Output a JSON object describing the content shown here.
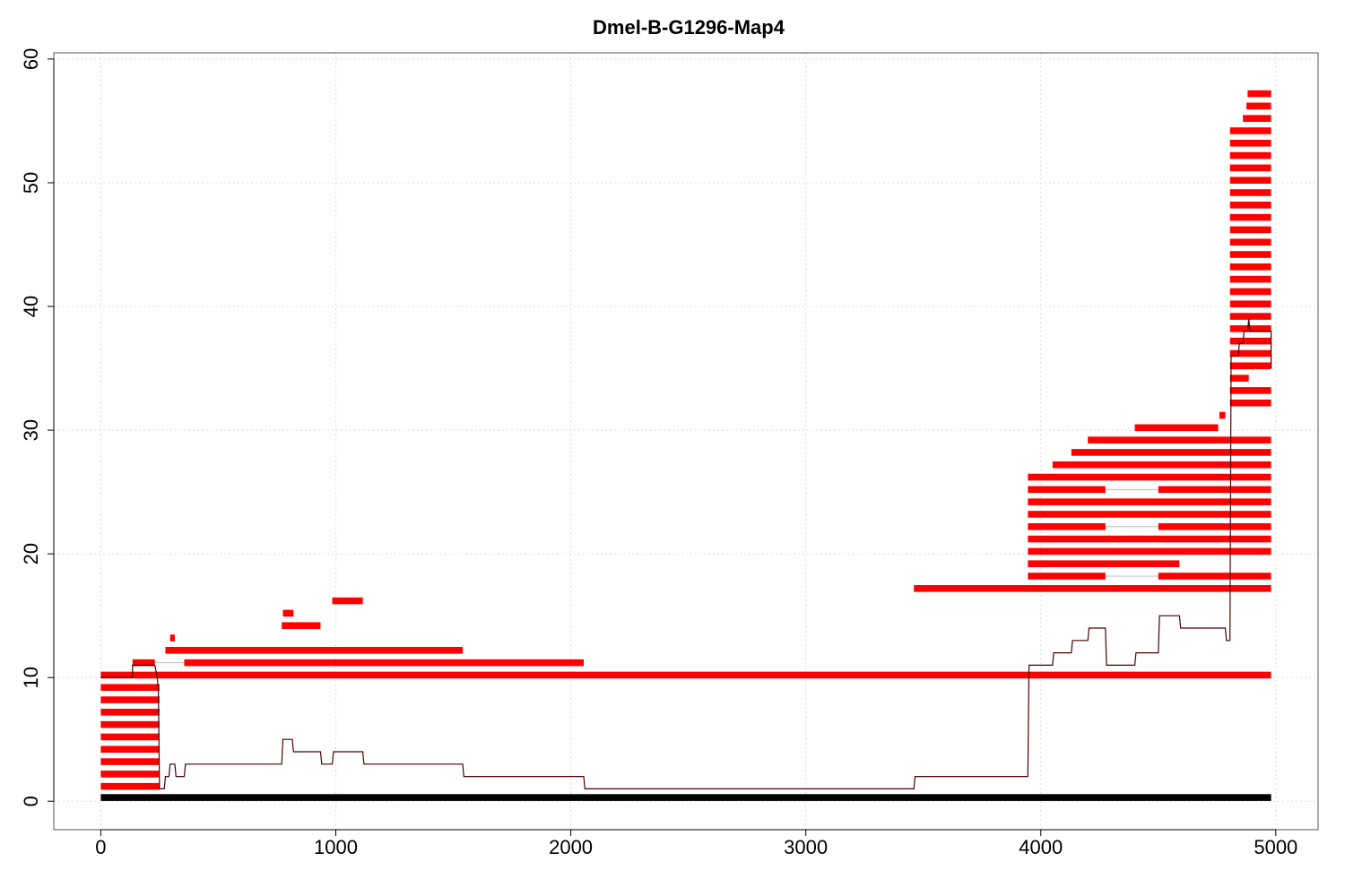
{
  "chart_data": {
    "type": "bar",
    "title": "Dmel-B-G1296-Map4",
    "xlabel": "",
    "ylabel": "",
    "xlim": [
      -200,
      5180
    ],
    "ylim": [
      -2.3,
      60.5
    ],
    "x_ticks": [
      0,
      1000,
      2000,
      3000,
      4000,
      5000
    ],
    "y_ticks": [
      0,
      10,
      20,
      30,
      40,
      50,
      60
    ],
    "grid": true,
    "colors": {
      "read": "#ff0000",
      "coverage": "#4a0000",
      "reference": "#000000",
      "gap": "#bbbbbb",
      "grid": "#dddddd"
    },
    "reference": {
      "x0": 0,
      "x1": 4980,
      "y": 0.3
    },
    "reads": [
      {
        "y": 1.2,
        "x0": 0,
        "x1": 250
      },
      {
        "y": 2.2,
        "x0": 0,
        "x1": 250
      },
      {
        "y": 3.2,
        "x0": 0,
        "x1": 250
      },
      {
        "y": 4.2,
        "x0": 0,
        "x1": 250
      },
      {
        "y": 5.2,
        "x0": 0,
        "x1": 250
      },
      {
        "y": 6.2,
        "x0": 0,
        "x1": 250
      },
      {
        "y": 7.2,
        "x0": 0,
        "x1": 250
      },
      {
        "y": 8.2,
        "x0": 0,
        "x1": 250
      },
      {
        "y": 9.2,
        "x0": 0,
        "x1": 250
      },
      {
        "y": 10.2,
        "x0": 0,
        "x1": 4980
      },
      {
        "y": 11.2,
        "x0": 135,
        "x1": 230,
        "gap_to": 355
      },
      {
        "y": 11.2,
        "x0": 355,
        "x1": 2055
      },
      {
        "y": 12.2,
        "x0": 275,
        "x1": 1540
      },
      {
        "y": 13.2,
        "x0": 295,
        "x1": 315
      },
      {
        "y": 14.2,
        "x0": 770,
        "x1": 935
      },
      {
        "y": 15.2,
        "x0": 775,
        "x1": 820
      },
      {
        "y": 16.2,
        "x0": 985,
        "x1": 1115
      },
      {
        "y": 17.2,
        "x0": 3460,
        "x1": 4980
      },
      {
        "y": 18.2,
        "x0": 3945,
        "x1": 4275,
        "gap_to": 4500
      },
      {
        "y": 18.2,
        "x0": 4500,
        "x1": 4980
      },
      {
        "y": 19.2,
        "x0": 3945,
        "x1": 4590
      },
      {
        "y": 20.2,
        "x0": 3945,
        "x1": 4980
      },
      {
        "y": 21.2,
        "x0": 3945,
        "x1": 4980
      },
      {
        "y": 22.2,
        "x0": 3945,
        "x1": 4275,
        "gap_to": 4500
      },
      {
        "y": 22.2,
        "x0": 4500,
        "x1": 4980
      },
      {
        "y": 23.2,
        "x0": 3945,
        "x1": 4980
      },
      {
        "y": 24.2,
        "x0": 3945,
        "x1": 4980
      },
      {
        "y": 25.2,
        "x0": 3945,
        "x1": 4275,
        "gap_to": 4500
      },
      {
        "y": 25.2,
        "x0": 4500,
        "x1": 4980
      },
      {
        "y": 26.2,
        "x0": 3945,
        "x1": 4980
      },
      {
        "y": 27.2,
        "x0": 4050,
        "x1": 4980
      },
      {
        "y": 28.2,
        "x0": 4130,
        "x1": 4980
      },
      {
        "y": 29.2,
        "x0": 4200,
        "x1": 4980
      },
      {
        "y": 30.2,
        "x0": 4400,
        "x1": 4755
      },
      {
        "y": 31.2,
        "x0": 4760,
        "x1": 4785
      },
      {
        "y": 32.2,
        "x0": 4805,
        "x1": 4980
      },
      {
        "y": 33.2,
        "x0": 4805,
        "x1": 4980
      },
      {
        "y": 34.2,
        "x0": 4805,
        "x1": 4885
      },
      {
        "y": 35.2,
        "x0": 4805,
        "x1": 4980
      },
      {
        "y": 36.2,
        "x0": 4805,
        "x1": 4980
      },
      {
        "y": 37.2,
        "x0": 4805,
        "x1": 4980
      },
      {
        "y": 38.2,
        "x0": 4805,
        "x1": 4980
      },
      {
        "y": 39.2,
        "x0": 4805,
        "x1": 4980
      },
      {
        "y": 40.2,
        "x0": 4805,
        "x1": 4980
      },
      {
        "y": 41.2,
        "x0": 4805,
        "x1": 4980
      },
      {
        "y": 42.2,
        "x0": 4805,
        "x1": 4980
      },
      {
        "y": 43.2,
        "x0": 4805,
        "x1": 4980
      },
      {
        "y": 44.2,
        "x0": 4805,
        "x1": 4980
      },
      {
        "y": 45.2,
        "x0": 4805,
        "x1": 4980
      },
      {
        "y": 46.2,
        "x0": 4805,
        "x1": 4980
      },
      {
        "y": 47.2,
        "x0": 4805,
        "x1": 4980
      },
      {
        "y": 48.2,
        "x0": 4805,
        "x1": 4980
      },
      {
        "y": 49.2,
        "x0": 4805,
        "x1": 4980
      },
      {
        "y": 50.2,
        "x0": 4805,
        "x1": 4980
      },
      {
        "y": 51.2,
        "x0": 4805,
        "x1": 4980
      },
      {
        "y": 52.2,
        "x0": 4805,
        "x1": 4980
      },
      {
        "y": 53.2,
        "x0": 4805,
        "x1": 4980
      },
      {
        "y": 54.2,
        "x0": 4805,
        "x1": 4980
      },
      {
        "y": 55.2,
        "x0": 4860,
        "x1": 4980
      },
      {
        "y": 56.2,
        "x0": 4875,
        "x1": 4980
      },
      {
        "y": 57.2,
        "x0": 4880,
        "x1": 4980
      }
    ],
    "coverage": [
      [
        0,
        10
      ],
      [
        135,
        10
      ],
      [
        135,
        11
      ],
      [
        230,
        11
      ],
      [
        240,
        10
      ],
      [
        245,
        9
      ],
      [
        250,
        1
      ],
      [
        270,
        1
      ],
      [
        275,
        2
      ],
      [
        290,
        2
      ],
      [
        295,
        3
      ],
      [
        315,
        3
      ],
      [
        320,
        2
      ],
      [
        355,
        2
      ],
      [
        360,
        3
      ],
      [
        770,
        3
      ],
      [
        775,
        5
      ],
      [
        815,
        5
      ],
      [
        820,
        4
      ],
      [
        935,
        4
      ],
      [
        940,
        3
      ],
      [
        985,
        3
      ],
      [
        990,
        4
      ],
      [
        1115,
        4
      ],
      [
        1120,
        3
      ],
      [
        1540,
        3
      ],
      [
        1545,
        2
      ],
      [
        2055,
        2
      ],
      [
        2060,
        1
      ],
      [
        3460,
        1
      ],
      [
        3465,
        2
      ],
      [
        3945,
        2
      ],
      [
        3950,
        11
      ],
      [
        4050,
        11
      ],
      [
        4055,
        12
      ],
      [
        4130,
        12
      ],
      [
        4135,
        13
      ],
      [
        4200,
        13
      ],
      [
        4205,
        14
      ],
      [
        4275,
        14
      ],
      [
        4280,
        11
      ],
      [
        4400,
        11
      ],
      [
        4405,
        12
      ],
      [
        4500,
        12
      ],
      [
        4505,
        15
      ],
      [
        4590,
        15
      ],
      [
        4595,
        14
      ],
      [
        4785,
        14
      ],
      [
        4790,
        13
      ],
      [
        4805,
        13
      ],
      [
        4810,
        36
      ],
      [
        4840,
        36
      ],
      [
        4845,
        37
      ],
      [
        4860,
        37
      ],
      [
        4865,
        38
      ],
      [
        4880,
        38
      ],
      [
        4885,
        39
      ],
      [
        4890,
        38
      ],
      [
        4980,
        38
      ],
      [
        4980,
        35
      ]
    ]
  }
}
